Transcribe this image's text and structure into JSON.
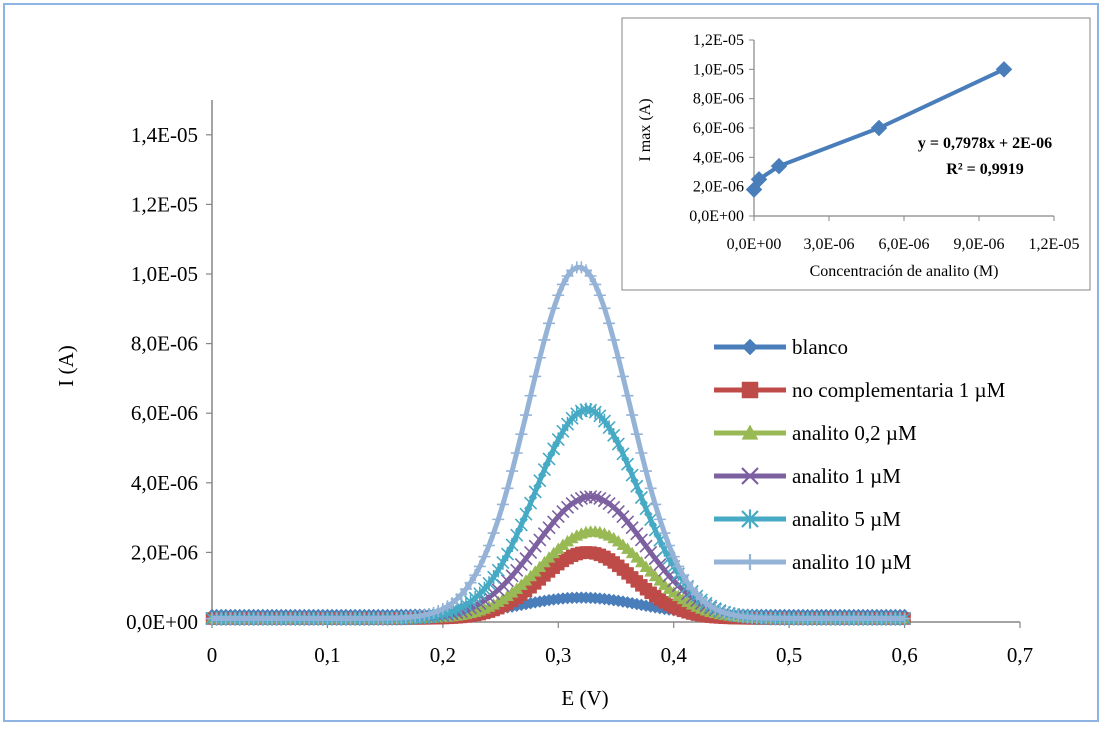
{
  "main_chart": {
    "type": "line",
    "xlabel": "E (V)",
    "ylabel": "I (A)",
    "xlim": [
      0,
      0.7
    ],
    "ylim": [
      0,
      1.5e-05
    ],
    "x_ticks": [
      "0",
      "0,1",
      "0,2",
      "0,3",
      "0,4",
      "0,5",
      "0,6",
      "0,7"
    ],
    "y_ticks": [
      "0,0E+00",
      "2,0E-06",
      "4,0E-06",
      "6,0E-06",
      "8,0E-06",
      "1,0E-05",
      "1,2E-05",
      "1,4E-05"
    ],
    "legend_position": "right-middle",
    "grid": false
  },
  "inset_chart": {
    "type": "scatter-line",
    "xlabel": "Concentración de analito (M)",
    "ylabel": "I max (A)",
    "xlim": [
      0,
      1.2e-05
    ],
    "ylim": [
      0,
      1.2e-05
    ],
    "x_ticks": [
      "0,0E+00",
      "3,0E-06",
      "6,0E-06",
      "9,0E-06",
      "1,2E-05"
    ],
    "y_ticks": [
      "0,0E+00",
      "2,0E-06",
      "4,0E-06",
      "6,0E-06",
      "8,0E-06",
      "1,0E-05",
      "1,2E-05"
    ],
    "equation": "y = 0,7978x + 2E-06",
    "r_squared": "R² = 0,9919",
    "color": "#4a7ebb"
  },
  "chart_data": [
    {
      "type": "line",
      "xlabel": "E (V)",
      "ylabel": "I (A)",
      "xlim": [
        0,
        0.7
      ],
      "ylim": [
        0,
        1.5e-05
      ],
      "x_range": [
        0,
        0.6
      ],
      "series": [
        {
          "name": "blanco",
          "color": "#4a7ebb",
          "marker": "diamond",
          "peak_x": 0.32,
          "peak_y": 5e-07,
          "width": 0.05,
          "baseline": 2e-07
        },
        {
          "name": "no complementaria 1 µM",
          "color": "#be4b48",
          "marker": "square",
          "peak_x": 0.325,
          "peak_y": 1.9e-06,
          "width": 0.04,
          "baseline": 1e-07
        },
        {
          "name": "analito 0,2 µM",
          "color": "#98b954",
          "marker": "triangle",
          "peak_x": 0.33,
          "peak_y": 2.5e-06,
          "width": 0.045,
          "baseline": 1e-07
        },
        {
          "name": "analito 1 µM",
          "color": "#7d60a0",
          "marker": "x",
          "peak_x": 0.328,
          "peak_y": 3.5e-06,
          "width": 0.047,
          "baseline": 1e-07
        },
        {
          "name": "analito 5 µM",
          "color": "#46aac5",
          "marker": "star",
          "peak_x": 0.325,
          "peak_y": 6e-06,
          "width": 0.045,
          "baseline": 1e-07
        },
        {
          "name": "analito 10 µM",
          "color": "#95b3d7",
          "marker": "plus",
          "peak_x": 0.318,
          "peak_y": 1.01e-05,
          "width": 0.044,
          "baseline": 1e-07
        }
      ]
    },
    {
      "type": "scatter",
      "xlabel": "Concentración de analito (M)",
      "ylabel": "I max (A)",
      "xlim": [
        0,
        1.2e-05
      ],
      "ylim": [
        0,
        1.2e-05
      ],
      "x": [
        0,
        2e-07,
        1e-06,
        5e-06,
        1e-05
      ],
      "y": [
        1.8e-06,
        2.5e-06,
        3.4e-06,
        6e-06,
        1e-05
      ],
      "annotations": [
        "y = 0,7978x + 2E-06",
        "R² = 0,9919"
      ]
    }
  ]
}
